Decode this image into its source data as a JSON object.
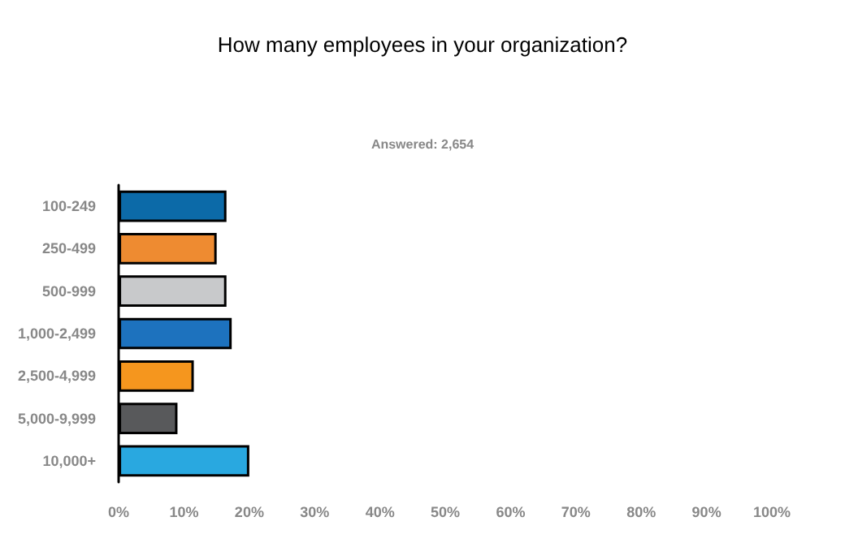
{
  "chart_data": {
    "type": "bar",
    "orientation": "horizontal",
    "title": "How many employees in your organization?",
    "subtitle": "Answered: 2,654",
    "categories": [
      "100-249",
      "250-499",
      "500-999",
      "1,000-2,499",
      "2,500-4,999",
      "5,000-9,999",
      "10,000+"
    ],
    "values": [
      16.5,
      15,
      16.5,
      17.3,
      11.5,
      9,
      20
    ],
    "colors": [
      "#0c6aa8",
      "#ee8b31",
      "#c8c9cb",
      "#1d72be",
      "#f5961e",
      "#58595b",
      "#29a8e0"
    ],
    "xlim": [
      0,
      100
    ],
    "xticks": [
      {
        "value": 0,
        "label": "0%"
      },
      {
        "value": 10,
        "label": "10%"
      },
      {
        "value": 20,
        "label": "20%"
      },
      {
        "value": 30,
        "label": "30%"
      },
      {
        "value": 40,
        "label": "40%"
      },
      {
        "value": 50,
        "label": "50%"
      },
      {
        "value": 60,
        "label": "60%"
      },
      {
        "value": 70,
        "label": "70%"
      },
      {
        "value": 80,
        "label": "80%"
      },
      {
        "value": 90,
        "label": "90%"
      },
      {
        "value": 100,
        "label": "100%"
      }
    ],
    "data_labels": false
  }
}
